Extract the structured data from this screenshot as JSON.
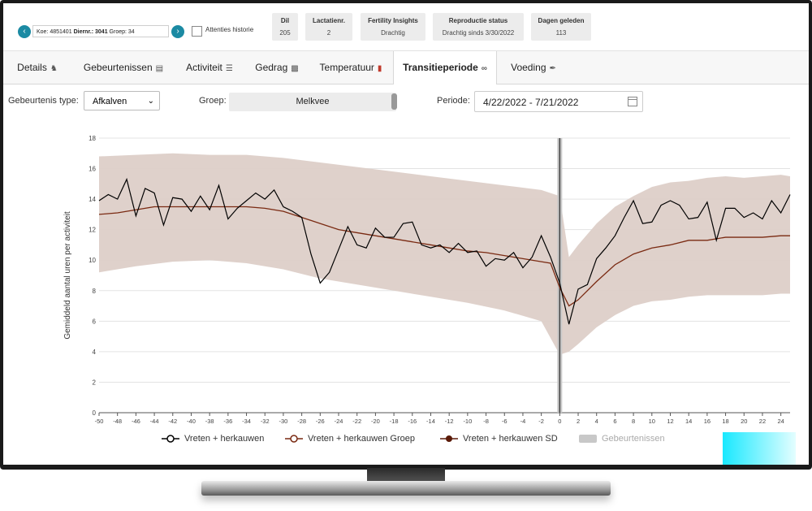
{
  "header": {
    "koe_prefix": "Koe: 4851401",
    "diernr_label": "Diernr.: 3041",
    "groep_text": "Groep: 34",
    "attenties_label": "Attenties historie",
    "stats": [
      {
        "title": "Dil",
        "value": "205"
      },
      {
        "title": "Lactatienr.",
        "value": "2"
      },
      {
        "title": "Fertility Insights",
        "value": "Drachtig"
      },
      {
        "title": "Reproductie status",
        "value": "Drachtig sinds 3/30/2022"
      },
      {
        "title": "Dagen geleden",
        "value": "113"
      }
    ]
  },
  "tabs": [
    {
      "label": "Details",
      "icon": "cow-icon"
    },
    {
      "label": "Gebeurtenissen",
      "icon": "calendar-icon"
    },
    {
      "label": "Activiteit",
      "icon": "activity-icon"
    },
    {
      "label": "Gedrag",
      "icon": "bar-chart-icon"
    },
    {
      "label": "Temperatuur",
      "icon": "thermometer-icon"
    },
    {
      "label": "Transitieperiode",
      "icon": "link-icon",
      "active": true
    },
    {
      "label": "Voeding",
      "icon": "feather-icon"
    }
  ],
  "filters": {
    "type_label": "Gebeurtenis type:",
    "type_value": "Afkalven",
    "groep_label": "Groep:",
    "groep_value": "Melkvee",
    "periode_label": "Periode:",
    "periode_value": "4/22/2022 - 7/21/2022"
  },
  "colors": {
    "accent": "#1b8aa3",
    "band": "#ddcfc8",
    "group_line": "#7a2a12",
    "sd_marker": "#5a1a08",
    "event": "#c8c8c8"
  },
  "chart_data": {
    "type": "line",
    "ylabel": "Gemiddeld aantal uren per activiteit",
    "xlim": [
      -50,
      25
    ],
    "ylim": [
      0,
      18
    ],
    "x_ticks": [
      -50,
      -48,
      -46,
      -44,
      -42,
      -40,
      -38,
      -36,
      -34,
      -32,
      -30,
      -28,
      -26,
      -24,
      -22,
      -20,
      -18,
      -16,
      -14,
      -12,
      -10,
      -8,
      -6,
      -4,
      -2,
      0,
      2,
      4,
      6,
      8,
      10,
      12,
      14,
      16,
      18,
      20,
      22,
      24
    ],
    "y_ticks": [
      0,
      2,
      4,
      6,
      8,
      10,
      12,
      14,
      16,
      18
    ],
    "grid": "horizontal",
    "event_line_x": 0,
    "series": [
      {
        "name": "Vreten + herkauwen",
        "color": "#000000",
        "x": [
          -50,
          -49,
          -48,
          -47,
          -46,
          -45,
          -44,
          -43,
          -42,
          -41,
          -40,
          -39,
          -38,
          -37,
          -36,
          -35,
          -34,
          -33,
          -32,
          -31,
          -30,
          -29,
          -28,
          -27,
          -26,
          -25,
          -24,
          -23,
          -22,
          -21,
          -20,
          -19,
          -18,
          -17,
          -16,
          -15,
          -14,
          -13,
          -12,
          -11,
          -10,
          -9,
          -8,
          -7,
          -6,
          -5,
          -4,
          -3,
          -2,
          -1,
          0,
          1,
          2,
          3,
          4,
          5,
          6,
          7,
          8,
          9,
          10,
          11,
          12,
          13,
          14,
          15,
          16,
          17,
          18,
          19,
          20,
          21,
          22,
          23,
          24,
          25
        ],
        "y": [
          13.9,
          14.3,
          14.0,
          15.3,
          12.9,
          14.7,
          14.4,
          12.3,
          14.1,
          14.0,
          13.2,
          14.2,
          13.3,
          14.9,
          12.7,
          13.4,
          13.9,
          14.4,
          14.0,
          14.6,
          13.5,
          13.2,
          12.8,
          10.4,
          8.5,
          9.2,
          10.7,
          12.2,
          11.0,
          10.8,
          12.1,
          11.5,
          11.5,
          12.4,
          12.5,
          11.0,
          10.8,
          11.0,
          10.5,
          11.1,
          10.5,
          10.6,
          9.6,
          10.1,
          10.0,
          10.5,
          9.5,
          10.2,
          11.6,
          10.2,
          8.5,
          5.8,
          8.1,
          8.4,
          10.1,
          10.8,
          11.6,
          12.8,
          13.9,
          12.4,
          12.5,
          13.6,
          13.9,
          13.6,
          12.7,
          12.8,
          13.8,
          11.3,
          13.4,
          13.4,
          12.8,
          13.1,
          12.7,
          13.9,
          13.1,
          14.3
        ]
      },
      {
        "name": "Vreten + herkauwen Groep",
        "color": "#7a2a12",
        "x": [
          -50,
          -48,
          -46,
          -44,
          -42,
          -40,
          -38,
          -36,
          -34,
          -32,
          -30,
          -28,
          -26,
          -24,
          -22,
          -20,
          -18,
          -16,
          -14,
          -12,
          -10,
          -8,
          -6,
          -4,
          -2,
          -1,
          0,
          1,
          2,
          4,
          6,
          8,
          10,
          12,
          14,
          15,
          16,
          18,
          20,
          22,
          24,
          25
        ],
        "y": [
          13.0,
          13.1,
          13.3,
          13.5,
          13.5,
          13.5,
          13.5,
          13.5,
          13.5,
          13.4,
          13.2,
          12.8,
          12.4,
          12.0,
          11.8,
          11.6,
          11.4,
          11.2,
          11.0,
          10.8,
          10.6,
          10.5,
          10.3,
          10.1,
          9.9,
          9.8,
          8.2,
          7.0,
          7.4,
          8.6,
          9.7,
          10.4,
          10.8,
          11.0,
          11.3,
          11.3,
          11.3,
          11.5,
          11.5,
          11.5,
          11.6,
          11.6
        ]
      },
      {
        "name": "Vreten + herkauwen SD",
        "color": "#ddcfc8",
        "x": [
          -50,
          -46,
          -42,
          -38,
          -34,
          -30,
          -26,
          -22,
          -18,
          -14,
          -10,
          -6,
          -2,
          0,
          1,
          2,
          4,
          6,
          8,
          10,
          12,
          14,
          16,
          18,
          20,
          22,
          24,
          25
        ],
        "upper": [
          16.8,
          16.9,
          17.0,
          16.9,
          16.9,
          16.7,
          16.4,
          16.1,
          15.8,
          15.5,
          15.2,
          14.9,
          14.6,
          14.2,
          10.2,
          11.0,
          12.4,
          13.5,
          14.2,
          14.8,
          15.1,
          15.2,
          15.4,
          15.5,
          15.4,
          15.5,
          15.6,
          15.5
        ],
        "lower": [
          9.2,
          9.6,
          9.9,
          10.0,
          9.8,
          9.4,
          8.8,
          8.4,
          8.0,
          7.6,
          7.2,
          6.7,
          6.0,
          3.8,
          4.0,
          4.5,
          5.6,
          6.4,
          7.0,
          7.3,
          7.4,
          7.6,
          7.7,
          7.7,
          7.7,
          7.7,
          7.8,
          7.8
        ]
      },
      {
        "name": "Gebeurtenissen",
        "color": "#c8c8c8"
      }
    ]
  }
}
